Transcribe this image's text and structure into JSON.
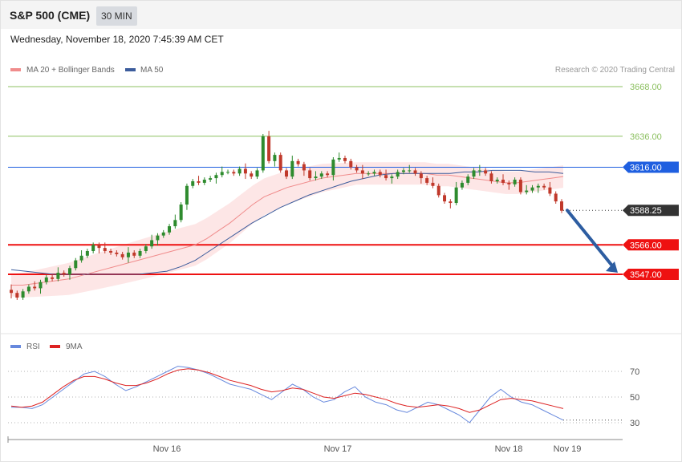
{
  "header": {
    "instrument": "S&P 500 (CME)",
    "timeframe": "30 MIN",
    "datetime": "Wednesday, November 18, 2020 7:45:39 AM CET"
  },
  "legend": {
    "ma20": "MA 20 + Bollinger Bands",
    "ma50": "MA 50",
    "credit": "Research © 2020 Trading Central",
    "rsi": "RSI",
    "rsi_ma": "9MA"
  },
  "colors": {
    "ma20": "#f08c8c",
    "band_fill": "#fde3e3",
    "ma50": "#3c5c9c",
    "up": "#2e8b2e",
    "down": "#c0392b",
    "support": "#ee1111",
    "resistance_blue": "#1f5fe0",
    "target_green": "#8cc060",
    "arrow": "#2d5da1",
    "rsi": "#6688dd",
    "rsi_ma": "#dd2222"
  },
  "chart_data": {
    "type": "candlestick",
    "instrument": "S&P 500 (CME)",
    "interval": "30 MIN",
    "ylim": [
      3520,
      3680
    ],
    "x_ticks": [
      "Nov 16",
      "Nov 17",
      "Nov 18",
      "Nov 19"
    ],
    "levels": [
      {
        "value": 3668.0,
        "label": "3668.00",
        "kind": "target"
      },
      {
        "value": 3636.0,
        "label": "3636.00",
        "kind": "target"
      },
      {
        "value": 3616.0,
        "label": "3616.00",
        "kind": "resistance"
      },
      {
        "value": 3588.25,
        "label": "3588.25",
        "kind": "last"
      },
      {
        "value": 3566.0,
        "label": "3566.00",
        "kind": "support"
      },
      {
        "value": 3547.0,
        "label": "3547.00",
        "kind": "support"
      }
    ],
    "projection": {
      "from": 3588.25,
      "to": 3547.0,
      "direction": "down"
    },
    "candles_close": [
      3535,
      3532,
      3536,
      3539,
      3538,
      3542,
      3545,
      3544,
      3548,
      3547,
      3551,
      3556,
      3559,
      3562,
      3566,
      3564,
      3562,
      3561,
      3560,
      3558,
      3561,
      3559,
      3562,
      3565,
      3569,
      3572,
      3574,
      3578,
      3582,
      3592,
      3604,
      3607,
      3606,
      3608,
      3609,
      3611,
      3613,
      3613,
      3612,
      3615,
      3612,
      3610,
      3614,
      3636,
      3620,
      3624,
      3614,
      3610,
      3620,
      3618,
      3614,
      3609,
      3610,
      3612,
      3611,
      3621,
      3622,
      3620,
      3616,
      3614,
      3612,
      3612,
      3613,
      3611,
      3609,
      3610,
      3613,
      3614,
      3614,
      3612,
      3609,
      3606,
      3604,
      3598,
      3594,
      3593,
      3603,
      3606,
      3610,
      3614,
      3614,
      3612,
      3607,
      3608,
      3606,
      3605,
      3608,
      3600,
      3601,
      3603,
      3604,
      3603,
      3599,
      3594,
      3588
    ],
    "ma20": [
      3540,
      3540,
      3541,
      3542,
      3543,
      3544,
      3546,
      3548,
      3550,
      3552,
      3554,
      3556,
      3558,
      3560,
      3562,
      3564,
      3566,
      3570,
      3575,
      3580,
      3586,
      3592,
      3597,
      3600,
      3603,
      3605,
      3607,
      3609,
      3610,
      3611,
      3612,
      3612,
      3612,
      3612,
      3612,
      3612,
      3612,
      3611,
      3611,
      3610,
      3609,
      3608,
      3607,
      3606,
      3606,
      3607,
      3608,
      3609,
      3610
    ],
    "ma50": [
      3550,
      3549,
      3548,
      3547,
      3547,
      3547,
      3547,
      3547,
      3547,
      3547,
      3548,
      3549,
      3552,
      3556,
      3562,
      3568,
      3574,
      3580,
      3585,
      3590,
      3594,
      3598,
      3601,
      3604,
      3607,
      3609,
      3611,
      3612,
      3612,
      3612,
      3612,
      3612,
      3613,
      3613,
      3614,
      3614,
      3614,
      3613,
      3613,
      3612
    ],
    "rsi": {
      "levels": [
        70,
        50,
        30
      ],
      "rsi": [
        42,
        42,
        41,
        44,
        50,
        56,
        62,
        68,
        70,
        66,
        60,
        55,
        58,
        62,
        66,
        70,
        74,
        73,
        71,
        68,
        64,
        60,
        58,
        56,
        52,
        48,
        54,
        60,
        56,
        50,
        46,
        48,
        54,
        58,
        50,
        46,
        44,
        40,
        38,
        42,
        46,
        44,
        40,
        36,
        30,
        40,
        50,
        56,
        50,
        46,
        44,
        40,
        36,
        32
      ],
      "ma9": [
        43,
        42,
        43,
        46,
        52,
        58,
        63,
        66,
        66,
        64,
        61,
        59,
        59,
        61,
        64,
        68,
        71,
        72,
        71,
        69,
        66,
        63,
        61,
        59,
        56,
        54,
        55,
        57,
        56,
        53,
        50,
        49,
        51,
        53,
        52,
        50,
        48,
        45,
        43,
        42,
        43,
        44,
        43,
        41,
        38,
        40,
        44,
        48,
        49,
        48,
        47,
        45,
        43,
        41
      ]
    }
  }
}
